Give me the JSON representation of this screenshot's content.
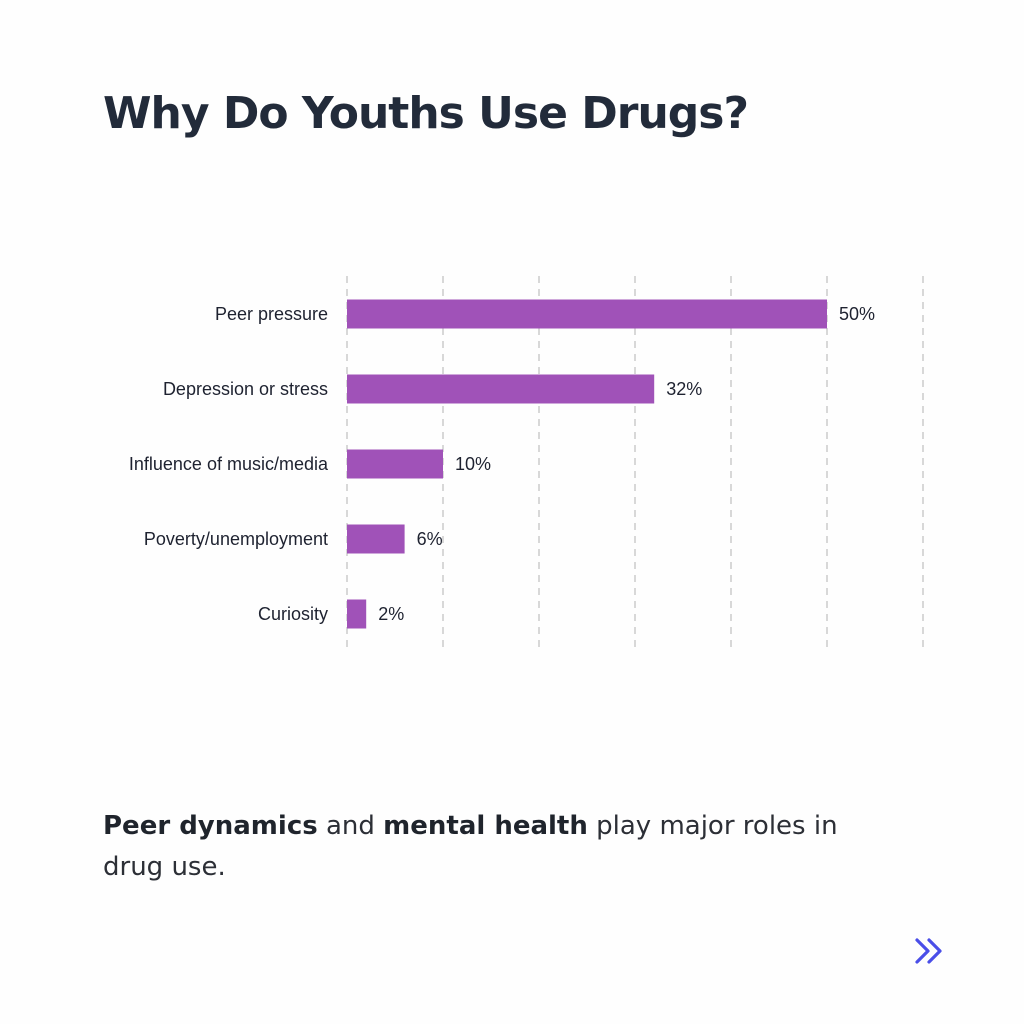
{
  "title": "Why Do Youths Use Drugs?",
  "caption": {
    "bold1": "Peer dynamics",
    "text1": " and ",
    "bold2": "mental health",
    "text2": " play major roles in drug use."
  },
  "colors": {
    "bar": "#a052b8",
    "title": "#222b3a",
    "grid": "#cfcfcf",
    "accent": "#4a4ee8"
  },
  "nav": {
    "next_icon": "double-chevron-right-icon"
  },
  "chart_data": {
    "type": "bar",
    "orientation": "horizontal",
    "categories": [
      "Peer pressure",
      "Depression or stress",
      "Influence of music/media",
      "Poverty/unemployment",
      "Curiosity"
    ],
    "values": [
      50,
      32,
      10,
      6,
      2
    ],
    "value_labels": [
      "50%",
      "32%",
      "10%",
      "6%",
      "2%"
    ],
    "xlim": [
      0,
      60
    ],
    "grid": true,
    "legend": "none"
  }
}
